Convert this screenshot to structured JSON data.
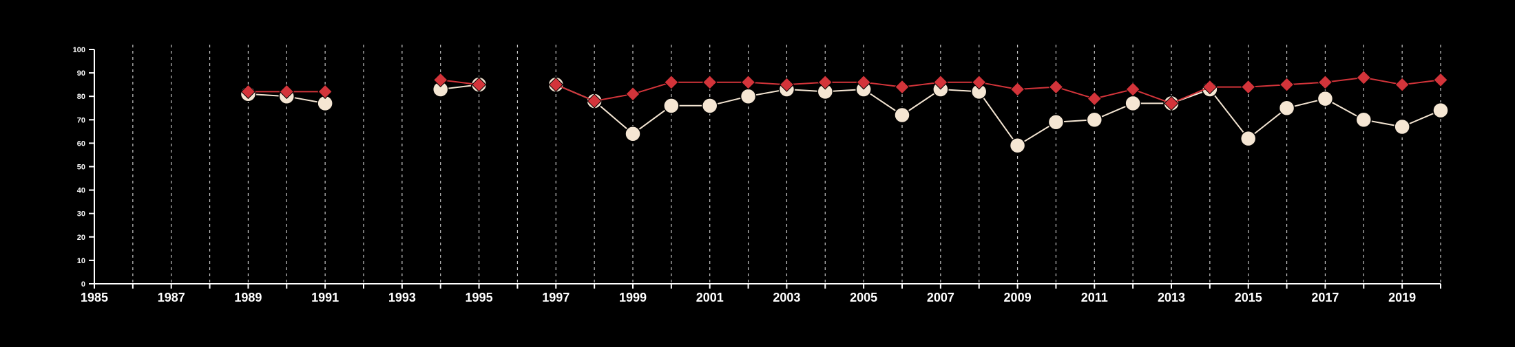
{
  "chart_data": {
    "type": "line",
    "title": "",
    "xlabel": "",
    "ylabel": "",
    "xlim": [
      1985,
      2020
    ],
    "ylim": [
      0,
      100
    ],
    "y_ticks": [
      0,
      10,
      20,
      30,
      40,
      50,
      60,
      70,
      80,
      90,
      100
    ],
    "x_tick_labels": [
      "1985",
      "1987",
      "1989",
      "1991",
      "1993",
      "1995",
      "1997",
      "1999",
      "2001",
      "2003",
      "2005",
      "2007",
      "2009",
      "2011",
      "2013",
      "2015",
      "2017",
      "2019"
    ],
    "x_gridlines": "dashed vertical line at every year from 1986 to 2020",
    "legend": "none",
    "background": "#000000",
    "series": [
      {
        "marker": "diamond",
        "color": "#d3343a",
        "x": [
          1989,
          1990,
          1991,
          1994,
          1995,
          1997,
          1998,
          1999,
          2000,
          2001,
          2002,
          2003,
          2004,
          2005,
          2006,
          2007,
          2008,
          2009,
          2010,
          2011,
          2012,
          2013,
          2014,
          2015,
          2016,
          2017,
          2018,
          2019,
          2020
        ],
        "values": [
          82,
          82,
          82,
          87,
          85,
          85,
          78,
          81,
          86,
          86,
          86,
          85,
          86,
          86,
          84,
          86,
          86,
          83,
          84,
          79,
          83,
          77,
          84,
          84,
          85,
          86,
          88,
          85,
          87
        ],
        "segments": [
          [
            1989,
            1991
          ],
          [
            1994,
            1995
          ],
          [
            1997,
            2020
          ]
        ]
      },
      {
        "marker": "circle",
        "color": "#f5e6d3",
        "x": [
          1989,
          1990,
          1991,
          1994,
          1995,
          1997,
          1998,
          1999,
          2000,
          2001,
          2002,
          2003,
          2004,
          2005,
          2006,
          2007,
          2008,
          2009,
          2010,
          2011,
          2012,
          2013,
          2014,
          2015,
          2016,
          2017,
          2018,
          2019,
          2020
        ],
        "values": [
          81,
          80,
          77,
          83,
          85,
          85,
          78,
          64,
          76,
          76,
          80,
          83,
          82,
          83,
          72,
          83,
          82,
          59,
          69,
          70,
          77,
          77,
          83,
          62,
          75,
          79,
          70,
          67,
          74
        ],
        "segments": [
          [
            1989,
            1991
          ],
          [
            1994,
            1995
          ],
          [
            1997,
            2020
          ]
        ]
      }
    ]
  }
}
